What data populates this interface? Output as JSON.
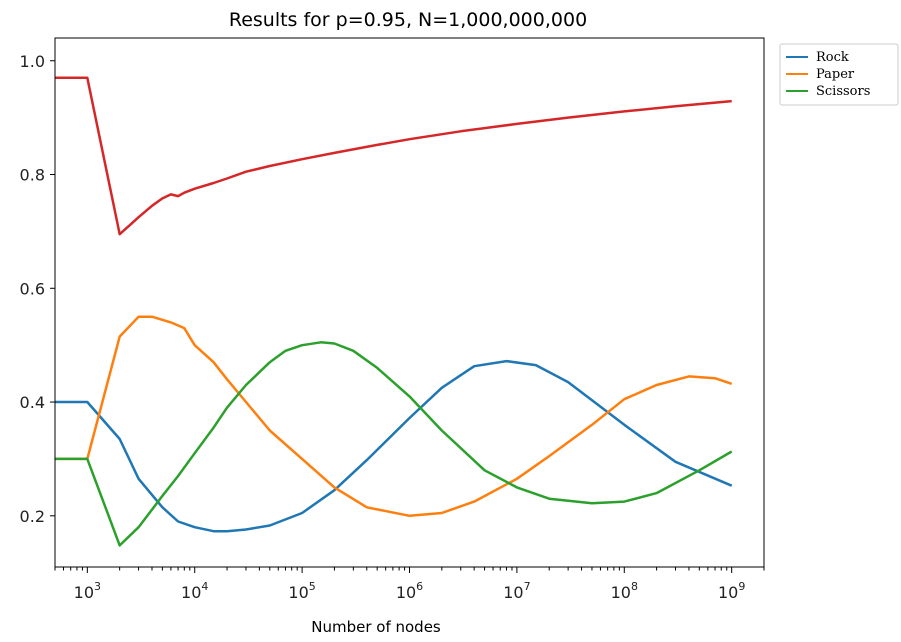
{
  "chart_data": {
    "type": "line",
    "title": "Results for p=0.95, N=1,000,000,000",
    "xlabel": "Number of nodes",
    "ylabel": "",
    "xscale": "log",
    "xlim": [
      500,
      2000000000
    ],
    "ylim": [
      0.11,
      1.04
    ],
    "yticks": [
      0.2,
      0.4,
      0.6,
      0.8,
      1.0
    ],
    "ytick_labels": [
      "0.2",
      "0.4",
      "0.6",
      "0.8",
      "1.0"
    ],
    "xticks": [
      1000,
      10000,
      100000,
      1000000,
      10000000,
      100000000,
      1000000000
    ],
    "xtick_base": "10",
    "xtick_exponents": [
      "3",
      "4",
      "5",
      "6",
      "7",
      "8",
      "9"
    ],
    "grid": false,
    "legend_position": "outside-top-right",
    "series": [
      {
        "name": "Rock",
        "color": "#1f77b4",
        "x": [
          500,
          1000,
          2000,
          3000,
          5000,
          7000,
          10000,
          15000,
          20000,
          30000,
          50000,
          100000,
          200000,
          400000,
          1000000,
          2000000,
          4000000,
          8000000,
          15000000,
          30000000,
          100000000,
          300000000,
          1000000000
        ],
        "y": [
          0.4,
          0.4,
          0.335,
          0.265,
          0.215,
          0.19,
          0.18,
          0.173,
          0.173,
          0.176,
          0.183,
          0.205,
          0.245,
          0.298,
          0.372,
          0.425,
          0.463,
          0.472,
          0.465,
          0.435,
          0.36,
          0.295,
          0.253
        ]
      },
      {
        "name": "Paper",
        "color": "#ff7f0e",
        "x": [
          500,
          1000,
          2000,
          3000,
          4000,
          6000,
          8000,
          10000,
          15000,
          20000,
          30000,
          50000,
          100000,
          200000,
          400000,
          1000000,
          2000000,
          4000000,
          10000000,
          20000000,
          50000000,
          100000000,
          200000000,
          400000000,
          700000000,
          1000000000
        ],
        "y": [
          0.3,
          0.3,
          0.515,
          0.55,
          0.55,
          0.54,
          0.53,
          0.5,
          0.47,
          0.44,
          0.4,
          0.35,
          0.3,
          0.25,
          0.215,
          0.2,
          0.205,
          0.225,
          0.265,
          0.305,
          0.36,
          0.405,
          0.43,
          0.445,
          0.442,
          0.432
        ]
      },
      {
        "name": "Scissors",
        "color": "#2ca02c",
        "x": [
          500,
          1000,
          2000,
          3000,
          5000,
          7000,
          10000,
          15000,
          20000,
          30000,
          50000,
          70000,
          100000,
          150000,
          200000,
          300000,
          500000,
          1000000,
          2000000,
          5000000,
          10000000,
          20000000,
          50000000,
          100000000,
          200000000,
          500000000,
          1000000000
        ],
        "y": [
          0.3,
          0.3,
          0.148,
          0.18,
          0.235,
          0.27,
          0.31,
          0.355,
          0.39,
          0.43,
          0.47,
          0.49,
          0.5,
          0.505,
          0.503,
          0.49,
          0.46,
          0.41,
          0.35,
          0.28,
          0.25,
          0.23,
          0.222,
          0.225,
          0.24,
          0.28,
          0.313
        ]
      },
      {
        "name": "",
        "color": "#d62728",
        "x": [
          500,
          1000,
          2000,
          3000,
          4000,
          5000,
          6000,
          7000,
          8000,
          10000,
          15000,
          20000,
          30000,
          50000,
          100000,
          200000,
          500000,
          1000000,
          3000000,
          10000000,
          30000000,
          100000000,
          300000000,
          1000000000
        ],
        "y": [
          0.97,
          0.97,
          0.695,
          0.725,
          0.745,
          0.758,
          0.765,
          0.762,
          0.768,
          0.775,
          0.785,
          0.793,
          0.805,
          0.815,
          0.827,
          0.838,
          0.852,
          0.862,
          0.876,
          0.889,
          0.9,
          0.911,
          0.92,
          0.929
        ]
      }
    ]
  }
}
